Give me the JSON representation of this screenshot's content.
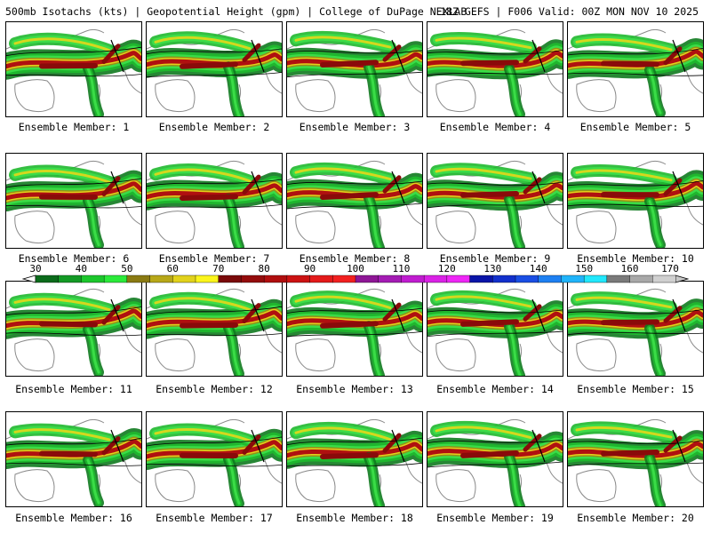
{
  "header": {
    "left": "500mb Isotachs (kts) | Geopotential Height (gpm) | College of DuPage NEXLAB",
    "right": "18Z GEFS | F006 Valid: 00Z MON NOV 10 2025"
  },
  "member_label_prefix": "Ensemble Member: ",
  "members": [
    1,
    2,
    3,
    4,
    5,
    6,
    7,
    8,
    9,
    10,
    11,
    12,
    13,
    14,
    15,
    16,
    17,
    18,
    19,
    20
  ],
  "member_labels": [
    "Ensemble Member: 1",
    "Ensemble Member: 2",
    "Ensemble Member: 3",
    "Ensemble Member: 4",
    "Ensemble Member: 5",
    "Ensemble Member: 6",
    "Ensemble Member: 7",
    "Ensemble Member: 8",
    "Ensemble Member: 9",
    "Ensemble Member: 10",
    "Ensemble Member: 11",
    "Ensemble Member: 12",
    "Ensemble Member: 13",
    "Ensemble Member: 14",
    "Ensemble Member: 15",
    "Ensemble Member: 16",
    "Ensemble Member: 17",
    "Ensemble Member: 18",
    "Ensemble Member: 19",
    "Ensemble Member: 20"
  ],
  "colorbar": {
    "ticks": [
      "30",
      "40",
      "50",
      "60",
      "70",
      "80",
      "90",
      "100",
      "110",
      "120",
      "130",
      "140",
      "150",
      "160",
      "170"
    ],
    "colors": [
      "#0b6b1b",
      "#139a25",
      "#1cc72c",
      "#2bea3a",
      "#8a7a12",
      "#b8a818",
      "#e2d21c",
      "#fbf51c",
      "#7a0a0a",
      "#940c0c",
      "#b00e0e",
      "#cc1212",
      "#e41a1a",
      "#f22020",
      "#8e1696",
      "#a41cb4",
      "#c01cd0",
      "#da22e6",
      "#ee26f6",
      "#0a14a8",
      "#1230cc",
      "#1a4ee4",
      "#1e80f2",
      "#20b4fa",
      "#22e8fc",
      "#7a7a7a",
      "#a8a8a8",
      "#d0d0d0"
    ]
  },
  "map_colors": {
    "green_dark": "#0f7a1f",
    "green": "#1fb82e",
    "green_light": "#3de04a",
    "olive": "#9a8c14",
    "yellow": "#e6d61a",
    "red_dark": "#8a0a0a",
    "red": "#b01010",
    "land_outline": "#8a8a8a",
    "border": "#000000"
  }
}
